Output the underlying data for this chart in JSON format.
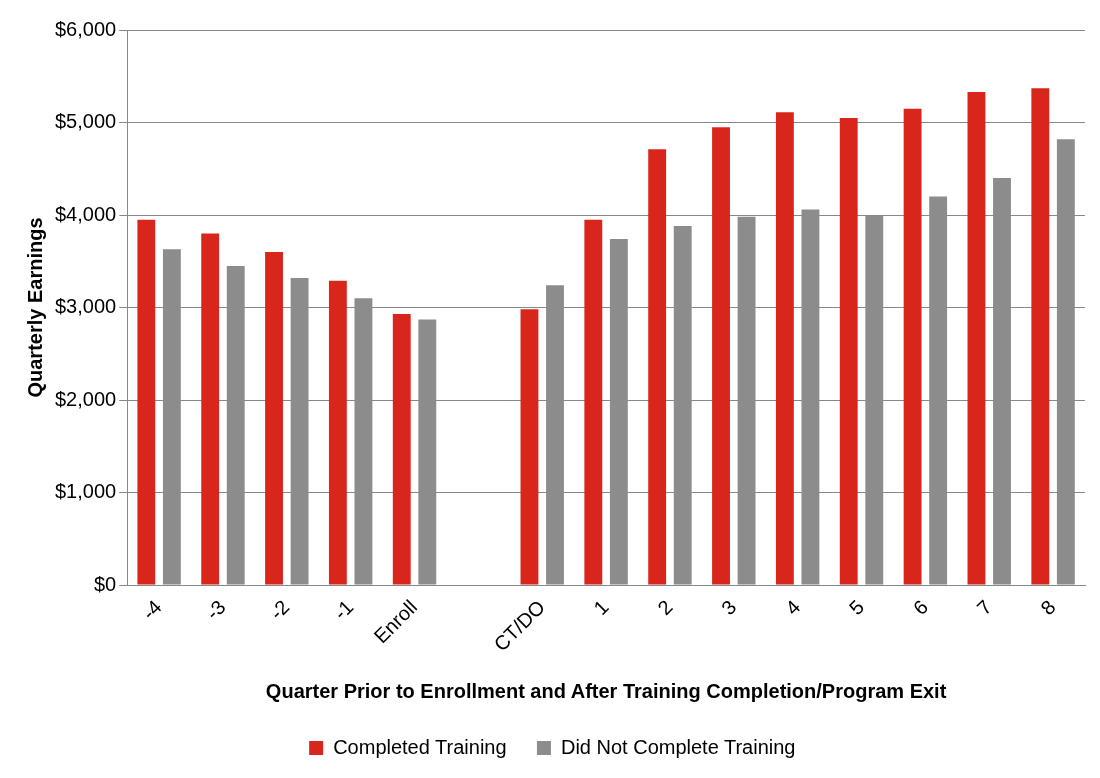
{
  "chart_data": {
    "type": "bar",
    "xlabel": "Quarter Prior to Enrollment and After Training Completion/Program Exit",
    "ylabel": "Quarterly Earnings",
    "categories": [
      "-4",
      "-3",
      "-2",
      "-1",
      "Enroll",
      null,
      "CT/DO",
      "1",
      "2",
      "3",
      "4",
      "5",
      "6",
      "7",
      "8"
    ],
    "series": [
      {
        "name": "Completed Training",
        "color": "#d9261c",
        "values": [
          3950,
          3800,
          3600,
          3290,
          2930,
          null,
          2980,
          3950,
          4710,
          4950,
          5110,
          5050,
          5150,
          5330,
          5370
        ]
      },
      {
        "name": "Did Not Complete Training",
        "color": "#8c8c8c",
        "values": [
          3630,
          3450,
          3320,
          3100,
          2870,
          null,
          3240,
          3740,
          3880,
          3980,
          4060,
          3990,
          4200,
          4400,
          4820
        ]
      }
    ],
    "ylim": [
      0,
      6000
    ],
    "yticks": [
      {
        "value": 0,
        "label": "$0"
      },
      {
        "value": 1000,
        "label": "$1,000"
      },
      {
        "value": 2000,
        "label": "$2,000"
      },
      {
        "value": 3000,
        "label": "$3,000"
      },
      {
        "value": 4000,
        "label": "$4,000"
      },
      {
        "value": 5000,
        "label": "$5,000"
      },
      {
        "value": 6000,
        "label": "$6,000"
      }
    ],
    "grid": "y",
    "legend": "bottom"
  }
}
